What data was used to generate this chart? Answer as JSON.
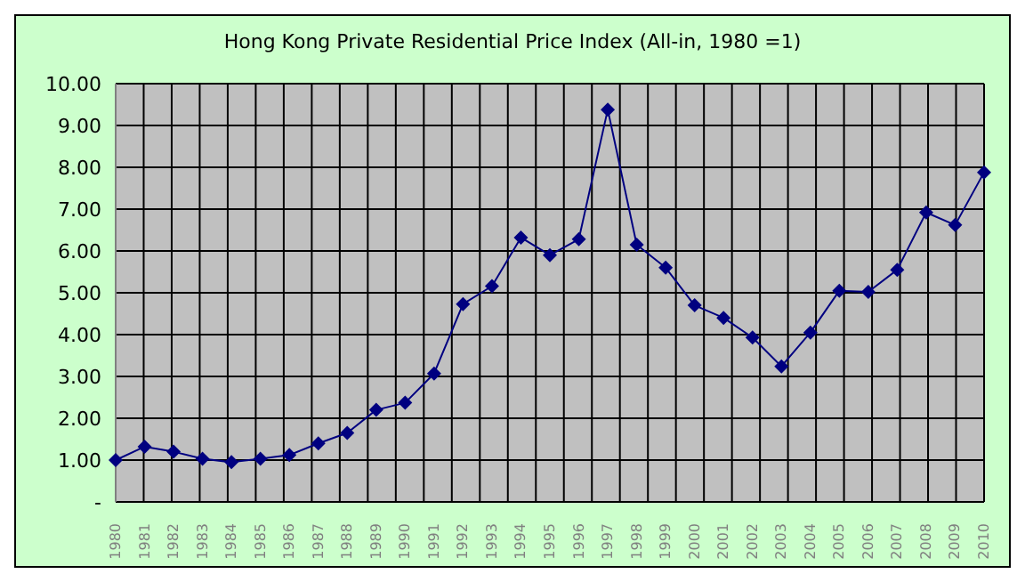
{
  "chart_data": {
    "type": "line",
    "title": "Hong Kong Private Residential Price Index (All-in, 1980 =1)",
    "categories": [
      "1980",
      "1981",
      "1982",
      "1983",
      "1984",
      "1985",
      "1986",
      "1987",
      "1988",
      "1989",
      "1990",
      "1991",
      "1992",
      "1993",
      "1994",
      "1995",
      "1996",
      "1997",
      "1998",
      "1999",
      "2000",
      "2001",
      "2002",
      "2003",
      "2004",
      "2005",
      "2006",
      "2007",
      "2008",
      "2009",
      "2010"
    ],
    "series": [
      {
        "color": "#000080",
        "values": [
          1.0,
          1.32,
          1.2,
          1.03,
          0.95,
          1.03,
          1.12,
          1.4,
          1.65,
          2.2,
          2.37,
          3.07,
          4.73,
          5.16,
          6.32,
          5.9,
          6.28,
          9.38,
          6.15,
          5.6,
          4.7,
          4.4,
          3.93,
          3.24,
          4.05,
          5.05,
          5.02,
          5.55,
          6.92,
          6.62,
          7.88
        ]
      }
    ],
    "ylim": [
      0,
      10
    ],
    "yticks": [
      {
        "value": 0,
        "label": "-"
      },
      {
        "value": 1,
        "label": "1.00"
      },
      {
        "value": 2,
        "label": "2.00"
      },
      {
        "value": 3,
        "label": "3.00"
      },
      {
        "value": 4,
        "label": "4.00"
      },
      {
        "value": 5,
        "label": "5.00"
      },
      {
        "value": 6,
        "label": "6.00"
      },
      {
        "value": 7,
        "label": "7.00"
      },
      {
        "value": 8,
        "label": "8.00"
      },
      {
        "value": 9,
        "label": "9.00"
      },
      {
        "value": 10,
        "label": "10.00"
      }
    ],
    "grid": true,
    "marker": "diamond",
    "line_style": "solid"
  }
}
